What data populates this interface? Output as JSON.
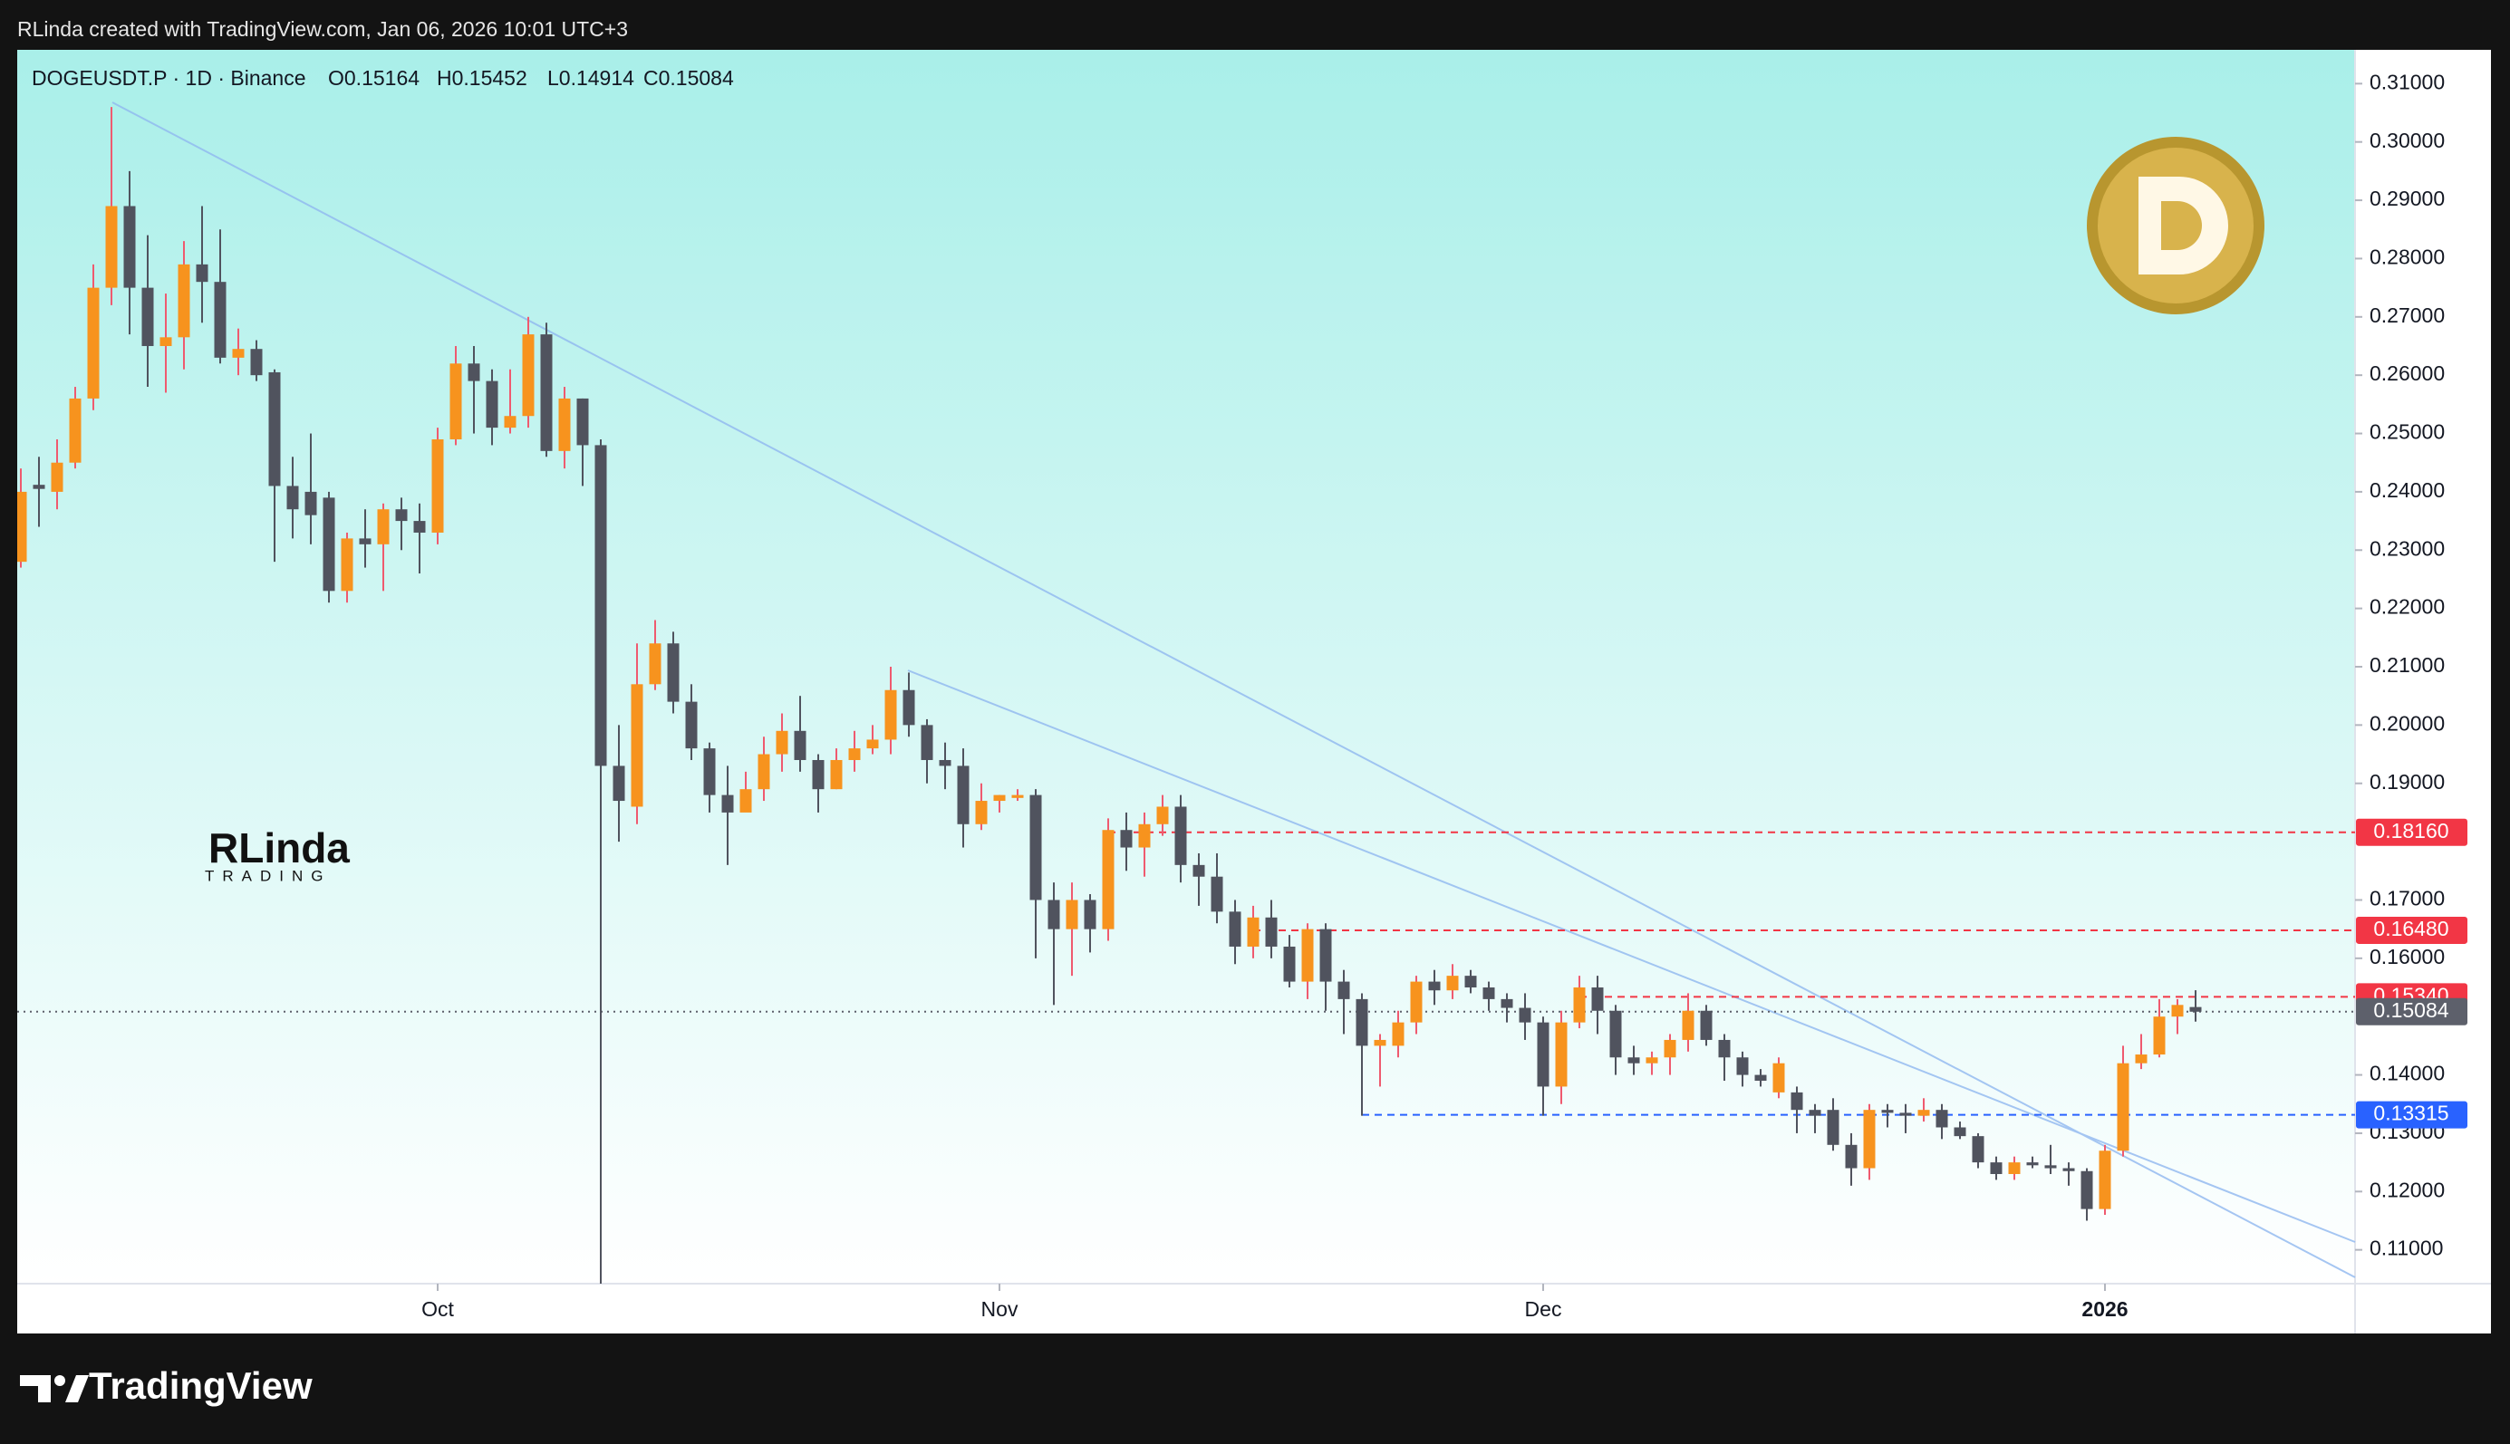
{
  "header": {
    "text": "RLinda created with TradingView.com, Jan 06, 2026 10:01 UTC+3"
  },
  "chart_data": {
    "type": "candlestick",
    "symbol": "DOGEUSDT.P · 1D · Binance",
    "ohlc_labels": [
      "O0.15164",
      "H0.15452",
      "L0.14914",
      "C0.15084"
    ],
    "watermark": {
      "name": "RLinda",
      "sub": "TRADING"
    },
    "up_color": "#f7931e",
    "down_color": "#50535e",
    "up_wick_color": "#ef5a6f",
    "down_wick_color": "#50535e",
    "open": [
      0.228,
      0.2412,
      0.24,
      0.245,
      0.256,
      0.275,
      0.289,
      0.275,
      0.265,
      0.2665,
      0.279,
      0.276,
      0.263,
      0.2645,
      0.2605,
      0.241,
      0.24,
      0.239,
      0.223,
      0.232,
      0.231,
      0.237,
      0.235,
      0.233,
      0.249,
      0.262,
      0.259,
      0.251,
      0.253,
      0.267,
      0.247,
      0.256,
      0.248,
      0.193,
      0.186,
      0.207,
      0.214,
      0.204,
      0.196,
      0.188,
      0.185,
      0.189,
      0.195,
      0.199,
      0.194,
      0.189,
      0.194,
      0.196,
      0.1975,
      0.206,
      0.2,
      0.194,
      0.193,
      0.183,
      0.187,
      0.1875,
      0.188,
      0.17,
      0.165,
      0.17,
      0.165,
      0.182,
      0.179,
      0.183,
      0.186,
      0.176,
      0.174,
      0.168,
      0.162,
      0.167,
      0.162,
      0.156,
      0.165,
      0.156,
      0.153,
      0.145,
      0.145,
      0.149,
      0.156,
      0.1545,
      0.157,
      0.155,
      0.153,
      0.1515,
      0.149,
      0.138,
      0.149,
      0.155,
      0.151,
      0.143,
      0.142,
      0.143,
      0.146,
      0.151,
      0.146,
      0.143,
      0.14,
      0.137,
      0.137,
      0.134,
      0.134,
      0.128,
      0.124,
      0.134,
      0.1335,
      0.133,
      0.134,
      0.131,
      0.1295,
      0.125,
      0.123,
      0.125,
      0.1245,
      0.124,
      0.1235,
      0.117,
      0.127,
      0.142,
      0.1435,
      0.15,
      0.15164
    ],
    "high": [
      0.244,
      0.246,
      0.249,
      0.258,
      0.279,
      0.306,
      0.295,
      0.284,
      0.274,
      0.283,
      0.289,
      0.285,
      0.268,
      0.266,
      0.261,
      0.246,
      0.25,
      0.24,
      0.233,
      0.237,
      0.238,
      0.239,
      0.238,
      0.251,
      0.265,
      0.265,
      0.261,
      0.261,
      0.27,
      0.269,
      0.258,
      0.256,
      0.249,
      0.2,
      0.214,
      0.218,
      0.216,
      0.207,
      0.197,
      0.193,
      0.192,
      0.198,
      0.202,
      0.205,
      0.195,
      0.196,
      0.199,
      0.2,
      0.21,
      0.209,
      0.201,
      0.197,
      0.196,
      0.19,
      0.188,
      0.189,
      0.189,
      0.173,
      0.173,
      0.171,
      0.184,
      0.185,
      0.185,
      0.188,
      0.188,
      0.178,
      0.178,
      0.17,
      0.169,
      0.17,
      0.164,
      0.166,
      0.166,
      0.158,
      0.154,
      0.147,
      0.151,
      0.157,
      0.158,
      0.159,
      0.158,
      0.156,
      0.154,
      0.154,
      0.15,
      0.151,
      0.157,
      0.157,
      0.152,
      0.145,
      0.144,
      0.147,
      0.154,
      0.152,
      0.147,
      0.144,
      0.141,
      0.143,
      0.138,
      0.135,
      0.136,
      0.13,
      0.135,
      0.135,
      0.135,
      0.136,
      0.135,
      0.132,
      0.13,
      0.126,
      0.126,
      0.126,
      0.128,
      0.125,
      0.124,
      0.128,
      0.145,
      0.147,
      0.153,
      0.153,
      0.15452
    ],
    "low": [
      0.227,
      0.234,
      0.237,
      0.244,
      0.254,
      0.272,
      0.267,
      0.258,
      0.257,
      0.261,
      0.269,
      0.262,
      0.26,
      0.259,
      0.228,
      0.232,
      0.231,
      0.221,
      0.221,
      0.227,
      0.223,
      0.23,
      0.226,
      0.231,
      0.248,
      0.25,
      0.248,
      0.25,
      0.251,
      0.246,
      0.244,
      0.241,
      0.095,
      0.18,
      0.183,
      0.206,
      0.202,
      0.194,
      0.185,
      0.176,
      0.186,
      0.187,
      0.192,
      0.192,
      0.185,
      0.189,
      0.192,
      0.195,
      0.195,
      0.198,
      0.19,
      0.189,
      0.179,
      0.182,
      0.185,
      0.187,
      0.16,
      0.152,
      0.157,
      0.161,
      0.163,
      0.175,
      0.174,
      0.181,
      0.173,
      0.169,
      0.166,
      0.159,
      0.16,
      0.16,
      0.155,
      0.153,
      0.151,
      0.147,
      0.133,
      0.138,
      0.143,
      0.147,
      0.152,
      0.153,
      0.154,
      0.151,
      0.149,
      0.146,
      0.133,
      0.135,
      0.148,
      0.147,
      0.14,
      0.14,
      0.14,
      0.14,
      0.144,
      0.145,
      0.139,
      0.138,
      0.138,
      0.136,
      0.13,
      0.13,
      0.127,
      0.121,
      0.122,
      0.131,
      0.13,
      0.132,
      0.129,
      0.129,
      0.124,
      0.122,
      0.122,
      0.124,
      0.123,
      0.121,
      0.115,
      0.116,
      0.126,
      0.141,
      0.143,
      0.147,
      0.14914
    ],
    "close": [
      0.24,
      0.2405,
      0.245,
      0.256,
      0.275,
      0.289,
      0.275,
      0.265,
      0.2665,
      0.279,
      0.276,
      0.263,
      0.2645,
      0.26,
      0.241,
      0.237,
      0.236,
      0.223,
      0.232,
      0.231,
      0.237,
      0.235,
      0.233,
      0.249,
      0.262,
      0.259,
      0.251,
      0.253,
      0.267,
      0.247,
      0.256,
      0.248,
      0.193,
      0.187,
      0.207,
      0.214,
      0.204,
      0.196,
      0.188,
      0.185,
      0.189,
      0.195,
      0.199,
      0.194,
      0.189,
      0.194,
      0.196,
      0.1975,
      0.206,
      0.2,
      0.194,
      0.193,
      0.183,
      0.187,
      0.188,
      0.188,
      0.17,
      0.165,
      0.17,
      0.165,
      0.182,
      0.179,
      0.183,
      0.186,
      0.176,
      0.174,
      0.168,
      0.162,
      0.167,
      0.162,
      0.156,
      0.165,
      0.156,
      0.153,
      0.145,
      0.146,
      0.149,
      0.156,
      0.1545,
      0.157,
      0.155,
      0.153,
      0.1515,
      0.149,
      0.138,
      0.149,
      0.155,
      0.151,
      0.143,
      0.142,
      0.143,
      0.146,
      0.151,
      0.146,
      0.143,
      0.14,
      0.139,
      0.142,
      0.134,
      0.133,
      0.128,
      0.124,
      0.134,
      0.1335,
      0.133,
      0.134,
      0.131,
      0.1295,
      0.125,
      0.123,
      0.125,
      0.1245,
      0.124,
      0.1235,
      0.117,
      0.127,
      0.142,
      0.1435,
      0.15,
      0.152,
      0.15084
    ],
    "xlim": [
      -0.2,
      128.8
    ],
    "xticks": [
      {
        "value": 23,
        "label": "Oct"
      },
      {
        "value": 54,
        "label": "Nov"
      },
      {
        "value": 84,
        "label": "Dec"
      },
      {
        "value": 115,
        "label": "2026"
      }
    ],
    "ylim": [
      0.1042,
      0.3158
    ],
    "yticks": [
      {
        "value": 0.11,
        "label": "0.11000"
      },
      {
        "value": 0.12,
        "label": "0.12000"
      },
      {
        "value": 0.13,
        "label": "0.13000"
      },
      {
        "value": 0.14,
        "label": "0.14000"
      },
      {
        "value": 0.16,
        "label": "0.16000"
      },
      {
        "value": 0.17,
        "label": "0.17000"
      },
      {
        "value": 0.19,
        "label": "0.19000"
      },
      {
        "value": 0.2,
        "label": "0.20000"
      },
      {
        "value": 0.21,
        "label": "0.21000"
      },
      {
        "value": 0.22,
        "label": "0.22000"
      },
      {
        "value": 0.23,
        "label": "0.23000"
      },
      {
        "value": 0.24,
        "label": "0.24000"
      },
      {
        "value": 0.25,
        "label": "0.25000"
      },
      {
        "value": 0.26,
        "label": "0.26000"
      },
      {
        "value": 0.27,
        "label": "0.27000"
      },
      {
        "value": 0.28,
        "label": "0.28000"
      },
      {
        "value": 0.29,
        "label": "0.29000"
      },
      {
        "value": 0.3,
        "label": "0.30000"
      },
      {
        "value": 0.31,
        "label": "0.31000"
      }
    ],
    "grid": false,
    "levels": [
      {
        "value": 0.1816,
        "label": "0.18160",
        "color": "#f23645"
      },
      {
        "value": 0.1648,
        "label": "0.16480",
        "color": "#f23645"
      },
      {
        "value": 0.1534,
        "label": "0.15340",
        "color": "#f23645"
      },
      {
        "value": 0.15084,
        "label": "0.15084",
        "color": "#5d606b"
      },
      {
        "value": 0.13315,
        "label": "0.13315",
        "color": "#2962ff"
      }
    ]
  },
  "footer": {
    "brand": "TradingView"
  }
}
